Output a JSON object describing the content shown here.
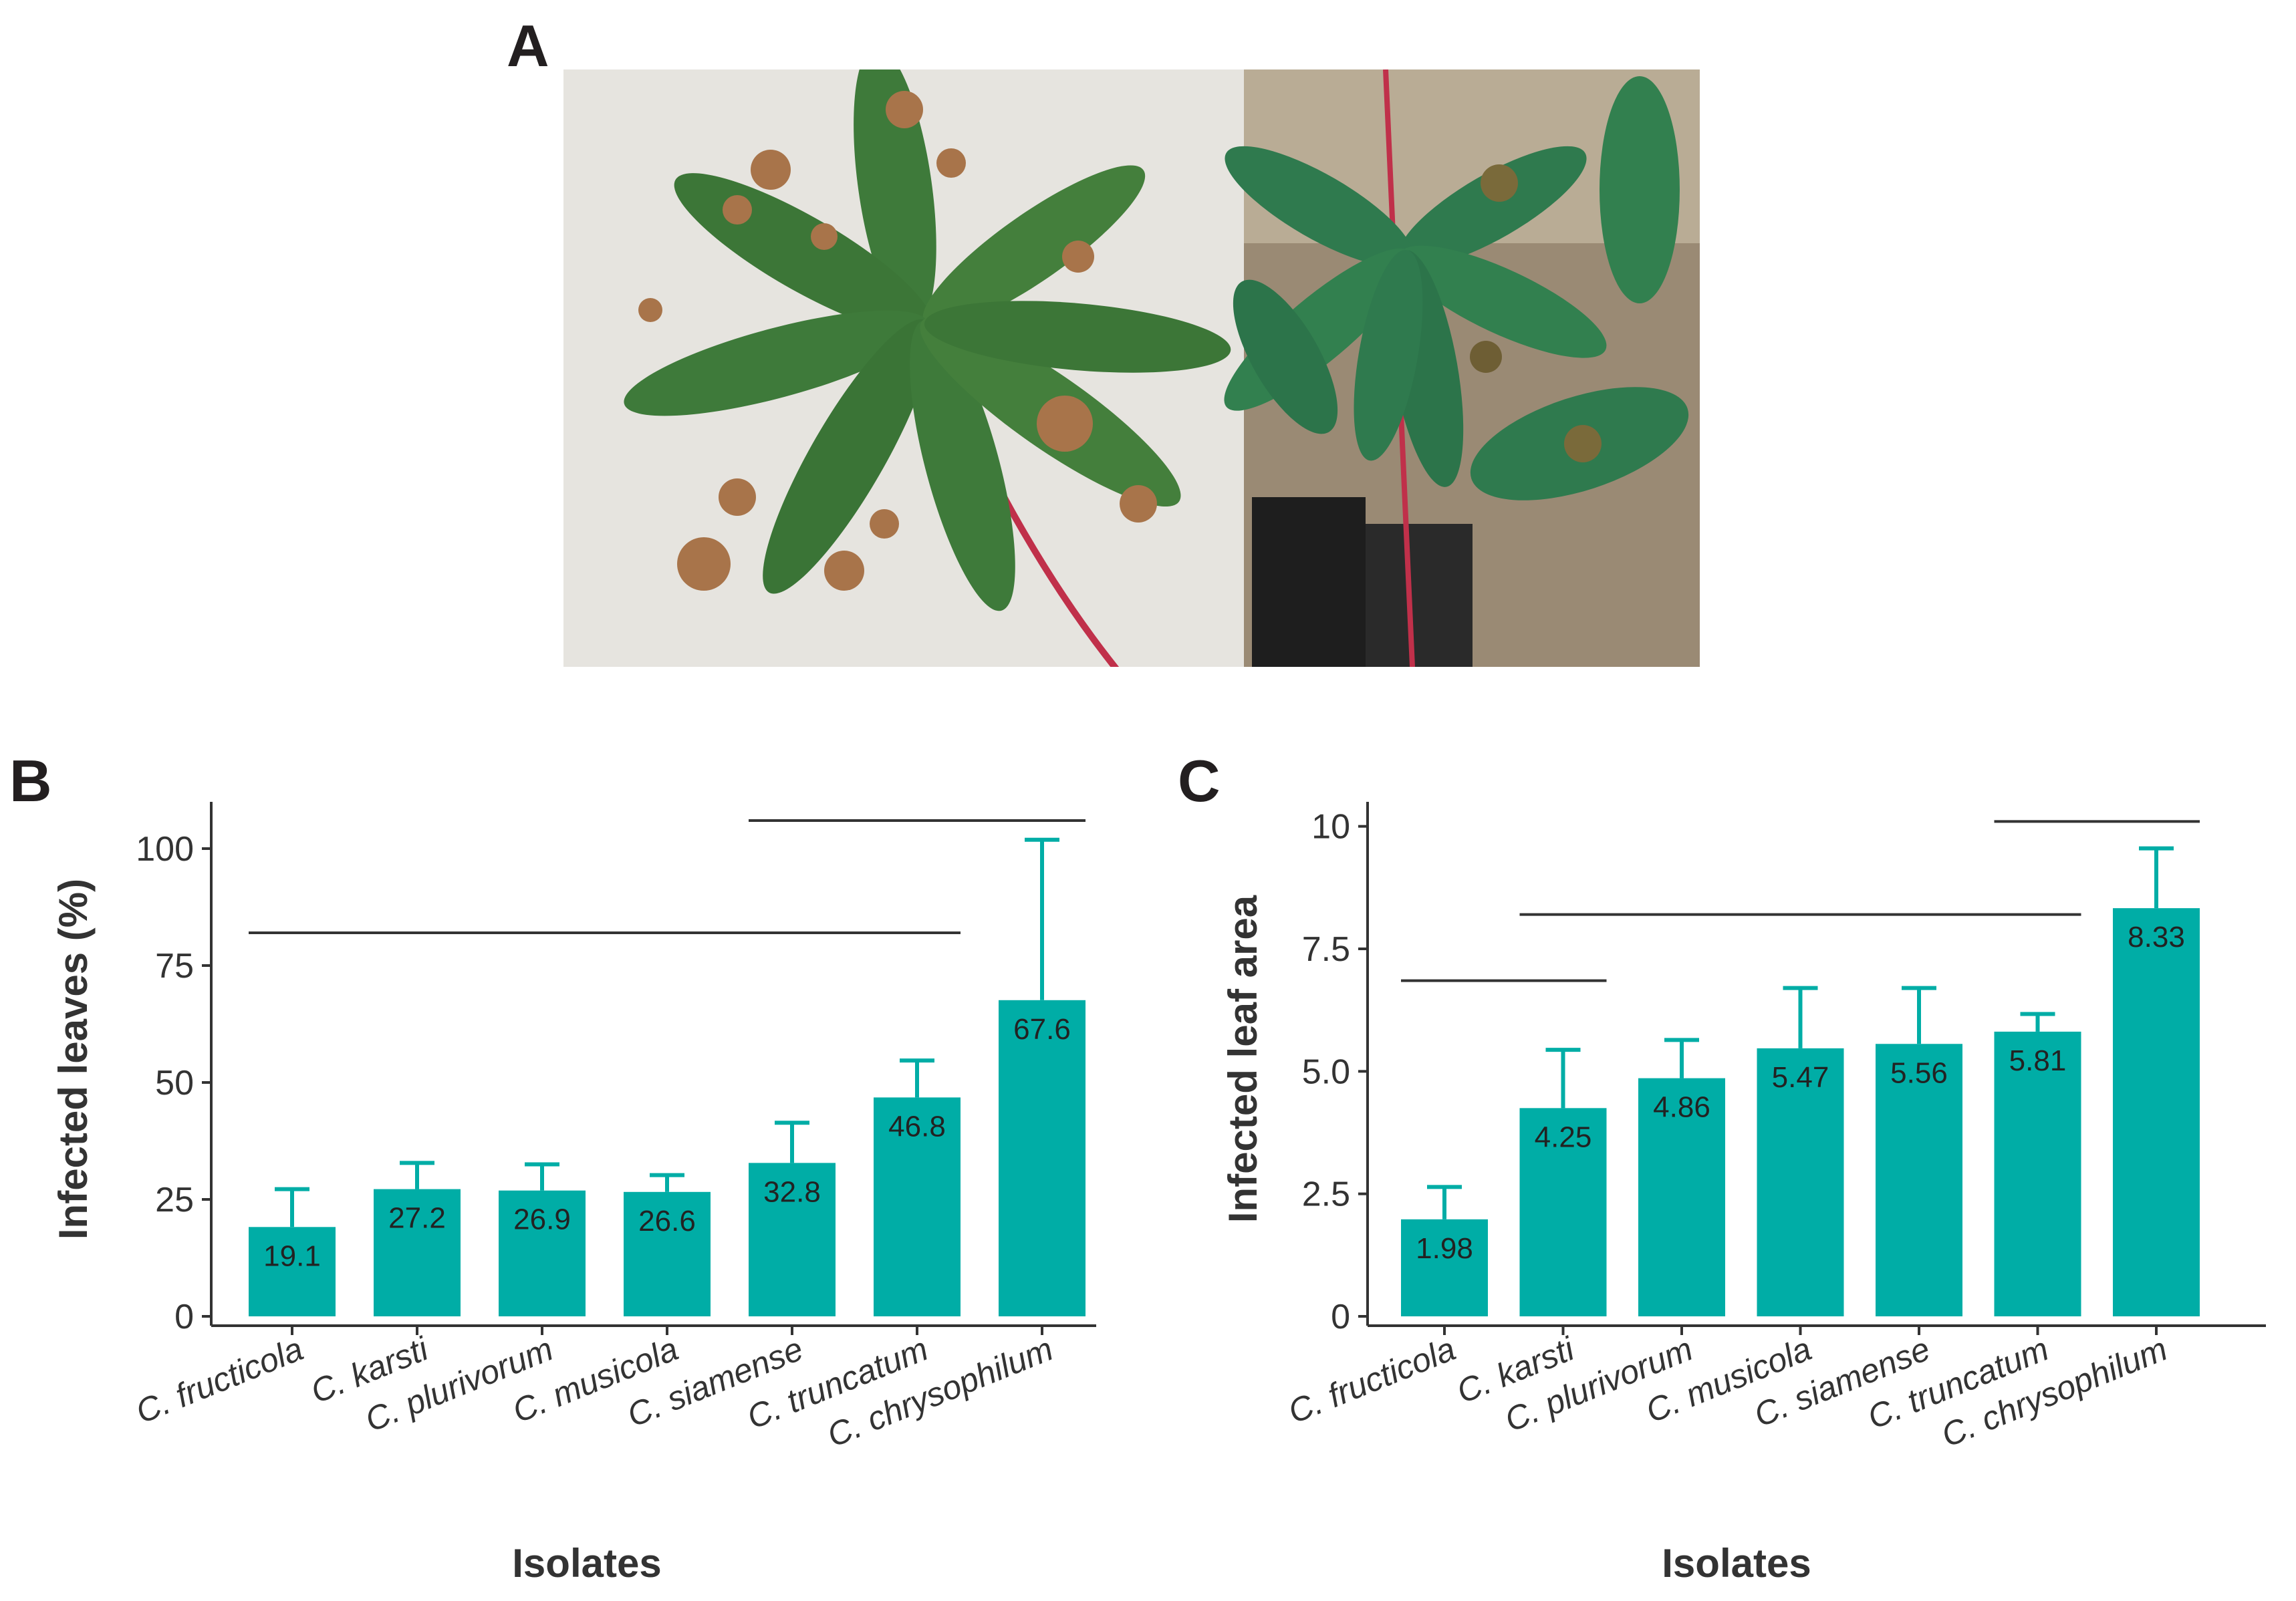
{
  "panels": {
    "a": "A",
    "b": "B",
    "c": "C"
  },
  "colors": {
    "bar": "#00ada6",
    "axis": "#333333",
    "leaf_green": "#3e7a3a",
    "lesion_brown": "#a8744a",
    "petiole_red": "#c0304a"
  },
  "chart_data": [
    {
      "type": "bar",
      "panel": "B",
      "categories": [
        "C. fructicola",
        "C. karsti",
        "C. plurivorum",
        "C. musicola",
        "C. siamense",
        "C. truncatum",
        "C. chrysophilum"
      ],
      "values": [
        19.1,
        27.2,
        26.9,
        26.6,
        32.8,
        46.8,
        67.6
      ],
      "errors": [
        8.1,
        5.6,
        5.6,
        3.6,
        8.6,
        7.9,
        34.3
      ],
      "value_labels": [
        "19.1",
        "27.2",
        "26.9",
        "26.6",
        "32.8",
        "46.8",
        "67.6"
      ],
      "ylabel": "Infected leaves (%)",
      "xlabel": "Isolates",
      "ylim": [
        0,
        110
      ],
      "yticks": [
        0,
        25,
        50,
        75,
        100
      ],
      "ytick_labels": [
        "0",
        "25",
        "50",
        "75",
        "100"
      ],
      "grid": false,
      "significance_groups": [
        {
          "from": 0,
          "to": 5,
          "y": 82
        },
        {
          "from": 4,
          "to": 6,
          "y": 106
        }
      ]
    },
    {
      "type": "bar",
      "panel": "C",
      "categories": [
        "C. fructicola",
        "C. karsti",
        "C. plurivorum",
        "C. musicola",
        "C. siamense",
        "C. truncatum",
        "C. chrysophilum"
      ],
      "values": [
        1.98,
        4.25,
        4.86,
        5.47,
        5.56,
        5.81,
        8.33
      ],
      "errors": [
        0.66,
        1.19,
        0.78,
        1.23,
        1.14,
        0.36,
        1.22
      ],
      "value_labels": [
        "1.98",
        "4.25",
        "4.86",
        "5.47",
        "5.56",
        "5.81",
        "8.33"
      ],
      "ylabel": "Infected leaf area",
      "xlabel": "Isolates",
      "ylim": [
        0,
        10.5
      ],
      "yticks": [
        0,
        2.5,
        5.0,
        7.5,
        10
      ],
      "ytick_labels": [
        "0",
        "2.5",
        "5.0",
        "7.5",
        "10"
      ],
      "grid": false,
      "significance_groups": [
        {
          "from": 0,
          "to": 1,
          "y": 6.85
        },
        {
          "from": 1,
          "to": 5,
          "y": 8.2
        },
        {
          "from": 5,
          "to": 6,
          "y": 10.1
        }
      ]
    }
  ]
}
